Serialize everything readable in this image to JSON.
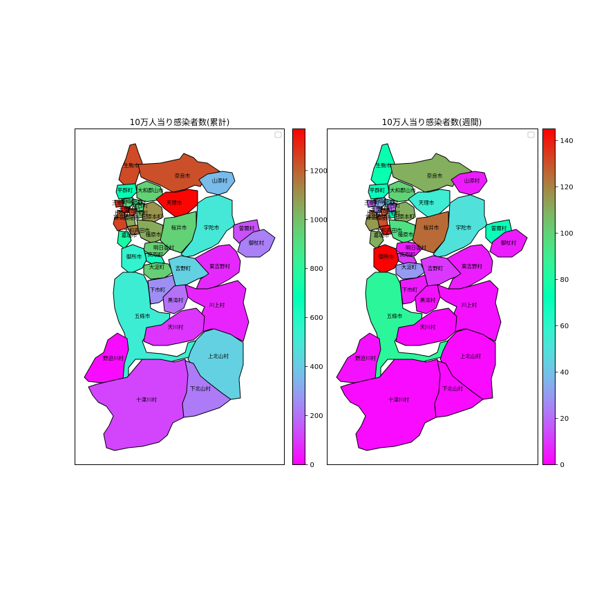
{
  "maps": [
    {
      "title": "10万人当り感染者数(累計)",
      "colorbar": {
        "min": 0,
        "max": 1370,
        "ticks": [
          "0",
          "200",
          "400",
          "600",
          "800",
          "1000",
          "1200"
        ],
        "tick_values": [
          0,
          200,
          400,
          600,
          800,
          1000,
          1200
        ]
      },
      "regions": [
        {
          "name": "生駒市",
          "value": 1240
        },
        {
          "name": "奈良市",
          "value": 1230
        },
        {
          "name": "平群町",
          "value": 680
        },
        {
          "name": "大和郡山市",
          "value": 950
        },
        {
          "name": "斑鳩町",
          "value": 900
        },
        {
          "name": "安堵町",
          "value": 880
        },
        {
          "name": "三郷町",
          "value": 1280
        },
        {
          "name": "王寺町",
          "value": 1350
        },
        {
          "name": "河合町",
          "value": 1250
        },
        {
          "name": "上牧町",
          "value": 1200
        },
        {
          "name": "香芝市",
          "value": 1250
        },
        {
          "name": "広陵町",
          "value": 1050
        },
        {
          "name": "川西町",
          "value": 900
        },
        {
          "name": "三宅町",
          "value": 1000
        },
        {
          "name": "田原本町",
          "value": 1100
        },
        {
          "name": "天理市",
          "value": 1360
        },
        {
          "name": "大和高田市",
          "value": 1150
        },
        {
          "name": "葛城市",
          "value": 750
        },
        {
          "name": "橿原市",
          "value": 1050
        },
        {
          "name": "桜井市",
          "value": 950
        },
        {
          "name": "宇陀市",
          "value": 500
        },
        {
          "name": "山添村",
          "value": 360
        },
        {
          "name": "曽爾村",
          "value": 140
        },
        {
          "name": "御杖村",
          "value": 230
        },
        {
          "name": "明日香村",
          "value": 960
        },
        {
          "name": "御所市",
          "value": 550
        },
        {
          "name": "高取町",
          "value": 620
        },
        {
          "name": "大淀町",
          "value": 960
        },
        {
          "name": "吉野町",
          "value": 420
        },
        {
          "name": "東吉野村",
          "value": 70
        },
        {
          "name": "下市町",
          "value": 260
        },
        {
          "name": "黒滝村",
          "value": 200
        },
        {
          "name": "五條市",
          "value": 520
        },
        {
          "name": "川上村",
          "value": 60
        },
        {
          "name": "天川村",
          "value": 90
        },
        {
          "name": "上北山村",
          "value": 420
        },
        {
          "name": "野迫川村",
          "value": 20
        },
        {
          "name": "十津川村",
          "value": 120
        },
        {
          "name": "下北山村",
          "value": 220
        }
      ]
    },
    {
      "title": "10万人当り感染者数(週間)",
      "colorbar": {
        "min": 0,
        "max": 145,
        "ticks": [
          "0",
          "20",
          "40",
          "60",
          "80",
          "100",
          "120",
          "140"
        ],
        "tick_values": [
          0,
          20,
          40,
          60,
          80,
          100,
          120,
          140
        ]
      },
      "regions": [
        {
          "name": "生駒市",
          "value": 75
        },
        {
          "name": "奈良市",
          "value": 110
        },
        {
          "name": "平群町",
          "value": 70
        },
        {
          "name": "大和郡山市",
          "value": 100
        },
        {
          "name": "斑鳩町",
          "value": 35
        },
        {
          "name": "安堵町",
          "value": 45
        },
        {
          "name": "三郷町",
          "value": 20
        },
        {
          "name": "王寺町",
          "value": 25
        },
        {
          "name": "河合町",
          "value": 130
        },
        {
          "name": "上牧町",
          "value": 120
        },
        {
          "name": "香芝市",
          "value": 115
        },
        {
          "name": "広陵町",
          "value": 130
        },
        {
          "name": "川西町",
          "value": 20
        },
        {
          "name": "三宅町",
          "value": 70
        },
        {
          "name": "田原本町",
          "value": 110
        },
        {
          "name": "天理市",
          "value": 55
        },
        {
          "name": "大和高田市",
          "value": 140
        },
        {
          "name": "葛城市",
          "value": 110
        },
        {
          "name": "橿原市",
          "value": 95
        },
        {
          "name": "桜井市",
          "value": 125
        },
        {
          "name": "宇陀市",
          "value": 50
        },
        {
          "name": "山添村",
          "value": 5
        },
        {
          "name": "曽爾村",
          "value": 70
        },
        {
          "name": "御杖村",
          "value": 5
        },
        {
          "name": "明日香村",
          "value": 5
        },
        {
          "name": "御所市",
          "value": 145
        },
        {
          "name": "高取町",
          "value": 10
        },
        {
          "name": "大淀町",
          "value": 30
        },
        {
          "name": "吉野町",
          "value": 10
        },
        {
          "name": "東吉野村",
          "value": 5
        },
        {
          "name": "下市町",
          "value": 5
        },
        {
          "name": "黒滝村",
          "value": 3
        },
        {
          "name": "五條市",
          "value": 85
        },
        {
          "name": "川上村",
          "value": 3
        },
        {
          "name": "天川村",
          "value": 2
        },
        {
          "name": "上北山村",
          "value": 2
        },
        {
          "name": "野迫川村",
          "value": 3
        },
        {
          "name": "十津川村",
          "value": 2
        },
        {
          "name": "下北山村",
          "value": 2
        }
      ]
    }
  ]
}
